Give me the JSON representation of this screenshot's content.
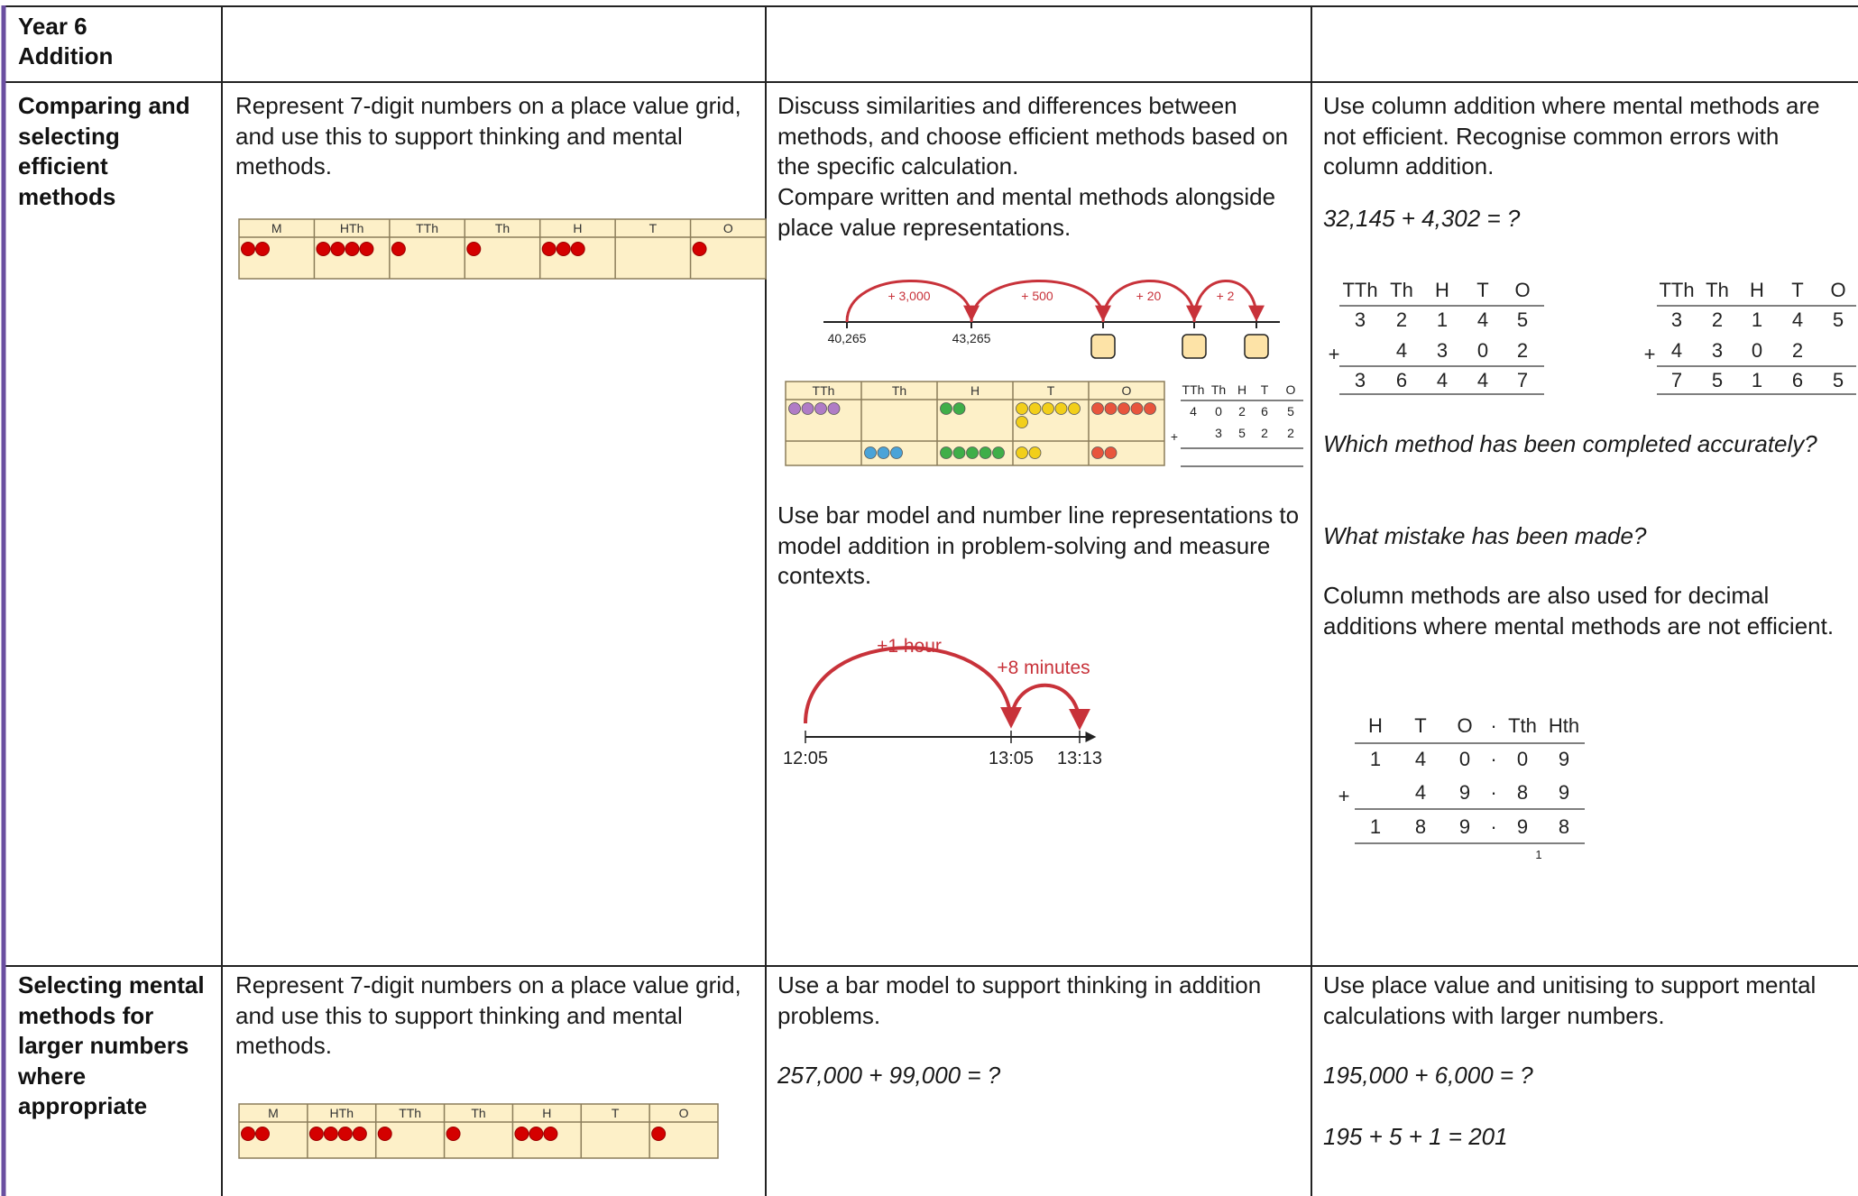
{
  "header": {
    "title": "Year 6",
    "subtitle": "Addition"
  },
  "rows": [
    {
      "heading": "Comparing and selecting efficient methods",
      "cells": [
        {
          "text": "Represent 7-digit numbers on a place value grid, and use this to support thinking and mental methods.",
          "grid": {
            "headers": [
              "M",
              "HTh",
              "TTh",
              "Th",
              "H",
              "T",
              "O"
            ],
            "counters": [
              2,
              4,
              1,
              1,
              3,
              0,
              1
            ]
          }
        },
        {
          "text1": "Discuss similarities and differences between methods, and choose efficient methods based on the specific calculation.",
          "text2": "Compare written and mental methods alongside place value representations.",
          "number_line": {
            "jumps": [
              "+ 3,000",
              "+ 500",
              "+ 20",
              "+ 2"
            ],
            "labels": [
              "40,265",
              "43,265"
            ]
          },
          "counters_table": {
            "headers": [
              "TTh",
              "Th",
              "H",
              "T",
              "O"
            ],
            "top": [
              4,
              0,
              2,
              6,
              5
            ],
            "bottom": [
              0,
              3,
              5,
              2,
              2
            ],
            "colors": [
              "#b07cc6",
              "#4aa3d8",
              "#3fae49",
              "#f2cf1a",
              "#e8553d"
            ]
          },
          "column": {
            "headers": [
              "TTh",
              "Th",
              "H",
              "T",
              "O"
            ],
            "rows": [
              [
                "4",
                "0",
                "2",
                "6",
                "5"
              ],
              [
                null,
                "3",
                "5",
                "2",
                "2"
              ]
            ],
            "sign": "+"
          },
          "text3": "Use bar model and number line representations to model addition in problem-solving and measure contexts.",
          "time_line": {
            "jumps": [
              "+1 hour",
              "+8 minutes"
            ],
            "labels": [
              "12:05",
              "13:05",
              "13:13"
            ]
          }
        },
        {
          "text": "Use column addition where mental methods are not efficient. Recognise common errors with column addition.",
          "question": "32,145 + 4,302 = ?",
          "methods": [
            {
              "headers": [
                "TTh",
                "Th",
                "H",
                "T",
                "O"
              ],
              "rows": [
                [
                  "3",
                  "2",
                  "1",
                  "4",
                  "5"
                ],
                [
                  null,
                  "4",
                  "3",
                  "0",
                  "2"
                ],
                [
                  "3",
                  "6",
                  "4",
                  "4",
                  "7"
                ]
              ],
              "sign": "+"
            },
            {
              "headers": [
                "TTh",
                "Th",
                "H",
                "T",
                "O"
              ],
              "rows": [
                [
                  "3",
                  "2",
                  "1",
                  "4",
                  "5"
                ],
                [
                  "4",
                  "3",
                  "0",
                  "2",
                  null
                ],
                [
                  "7",
                  "5",
                  "1",
                  "6",
                  "5"
                ]
              ],
              "sign": "+"
            }
          ],
          "prompt1": "Which method has been completed accurately?",
          "prompt2": "What mistake has been made?",
          "text2": "Column methods are also used for decimal additions where mental methods are not efficient.",
          "decimal": {
            "headers": [
              "H",
              "T",
              "O",
              "·",
              "Tth",
              "Hth"
            ],
            "rows": [
              [
                "1",
                "4",
                "0",
                "·",
                "0",
                "9"
              ],
              [
                null,
                "4",
                "9",
                "·",
                "8",
                "9"
              ],
              [
                "1",
                "8",
                "9",
                "·",
                "9",
                "8"
              ]
            ],
            "sign": "+",
            "carry": "1"
          }
        }
      ]
    },
    {
      "heading": "Selecting mental methods for larger numbers where appropriate",
      "cells": [
        {
          "text": "Represent 7-digit numbers on a place value grid, and use this to support thinking and mental methods.",
          "grid": {
            "headers": [
              "M",
              "HTh",
              "TTh",
              "Th",
              "H",
              "T",
              "O"
            ],
            "counters": [
              2,
              4,
              1,
              1,
              3,
              0,
              1
            ]
          }
        },
        {
          "text": "Use a bar model to support thinking in addition problems.",
          "question": "257,000 + 99,000 = ?"
        },
        {
          "text": "Use place value and unitising to support mental calculations with larger numbers.",
          "question": "195,000 + 6,000 = ?",
          "answer": "195 + 5 + 1 = 201"
        }
      ]
    }
  ]
}
